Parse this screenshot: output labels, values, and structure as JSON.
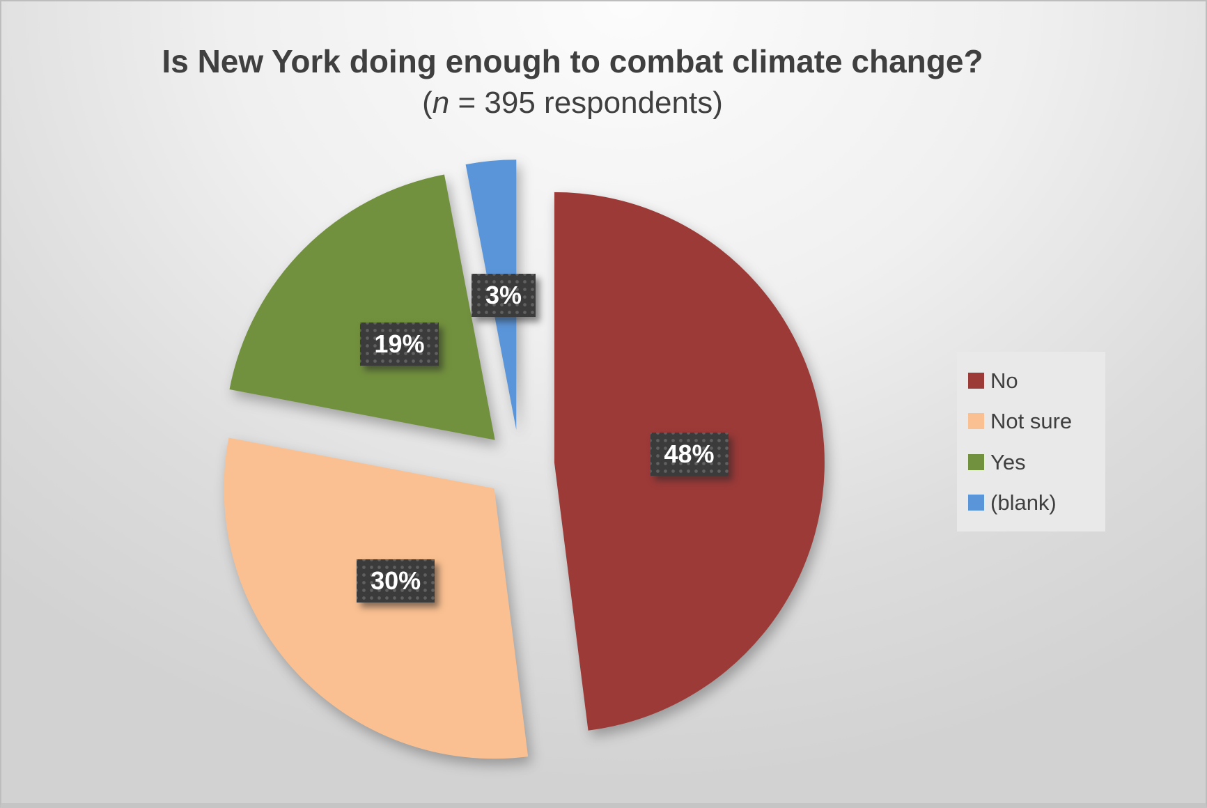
{
  "header": {
    "title": "Is New York doing enough to combat climate change?",
    "subtitle_open": "(",
    "subtitle_var": "n",
    "subtitle_rest": " = 395 respondents)"
  },
  "chart_data": {
    "type": "pie",
    "title": "Is New York doing enough to combat climate change?",
    "subtitle": "(n = 395 respondents)",
    "n_respondents": 395,
    "categories": [
      "No",
      "Not sure",
      "Yes",
      "(blank)"
    ],
    "values": [
      48,
      30,
      19,
      3
    ],
    "unit": "percent",
    "data_labels": [
      "48%",
      "30%",
      "19%",
      "3%"
    ],
    "colors": [
      "#9C3A38",
      "#FAC091",
      "#72913E",
      "#5B95D9"
    ],
    "start_angle_deg": 0,
    "direction": "clockwise",
    "exploded": true,
    "legend_position": "right",
    "legend_bg": "#E9E9E9",
    "label_box_color": "#3B3B3B",
    "label_text_color": "#FFFFFF",
    "title_color": "#3F3F3F"
  }
}
